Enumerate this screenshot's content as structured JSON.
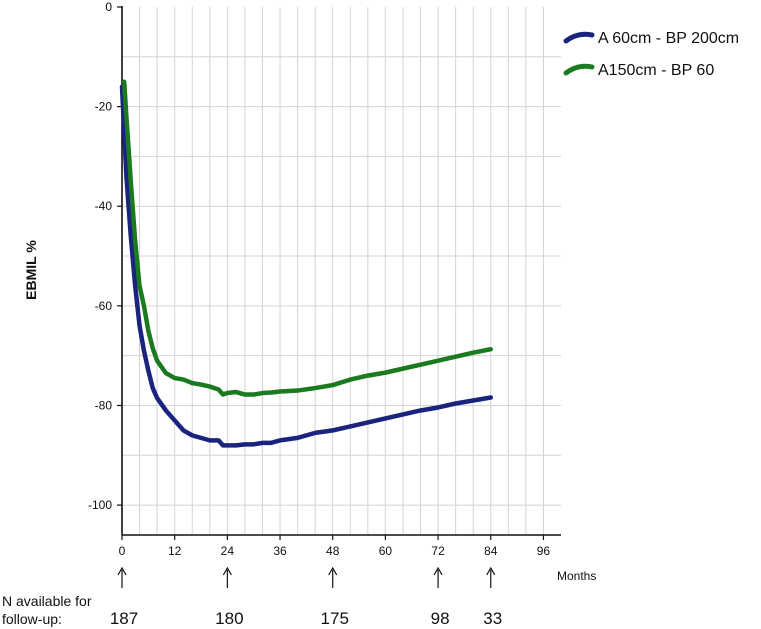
{
  "chart_data": {
    "type": "line",
    "title": "",
    "xlabel": "Months",
    "ylabel": "EBMIL %",
    "xlim": [
      0,
      100
    ],
    "ylim": [
      -106,
      0
    ],
    "x_ticks": [
      0,
      12,
      24,
      36,
      48,
      60,
      72,
      84,
      96
    ],
    "y_ticks": [
      0,
      -20,
      -40,
      -60,
      -80,
      -100
    ],
    "grid": true,
    "legend_position": "top-right",
    "series": [
      {
        "name": "A 60cm - BP 200cm",
        "color": "#1a237e",
        "points": [
          [
            0,
            -16
          ],
          [
            1,
            -34
          ],
          [
            2,
            -46
          ],
          [
            3,
            -56
          ],
          [
            4,
            -64
          ],
          [
            5,
            -69
          ],
          [
            6,
            -73
          ],
          [
            7,
            -76.5
          ],
          [
            8,
            -78.5
          ],
          [
            10,
            -81
          ],
          [
            12,
            -83
          ],
          [
            14,
            -85
          ],
          [
            16,
            -86
          ],
          [
            18,
            -86.5
          ],
          [
            20,
            -87
          ],
          [
            22,
            -87
          ],
          [
            23,
            -88
          ],
          [
            24,
            -88
          ],
          [
            26,
            -88
          ],
          [
            28,
            -87.8
          ],
          [
            30,
            -87.8
          ],
          [
            32,
            -87.5
          ],
          [
            34,
            -87.5
          ],
          [
            36,
            -87
          ],
          [
            40,
            -86.5
          ],
          [
            44,
            -85.5
          ],
          [
            48,
            -85
          ],
          [
            52,
            -84.2
          ],
          [
            56,
            -83.4
          ],
          [
            60,
            -82.6
          ],
          [
            64,
            -81.8
          ],
          [
            68,
            -81
          ],
          [
            72,
            -80.4
          ],
          [
            76,
            -79.6
          ],
          [
            80,
            -79
          ],
          [
            84,
            -78.4
          ]
        ]
      },
      {
        "name": "A150cm - BP 60",
        "color": "#1b7a1f",
        "points": [
          [
            0.5,
            -15
          ],
          [
            1,
            -22
          ],
          [
            2,
            -35
          ],
          [
            3,
            -47
          ],
          [
            4,
            -56
          ],
          [
            5,
            -60
          ],
          [
            6,
            -65
          ],
          [
            7,
            -68.5
          ],
          [
            8,
            -71
          ],
          [
            10,
            -73.5
          ],
          [
            12,
            -74.5
          ],
          [
            14,
            -74.8
          ],
          [
            16,
            -75.5
          ],
          [
            18,
            -75.8
          ],
          [
            20,
            -76.2
          ],
          [
            22,
            -76.8
          ],
          [
            23,
            -77.8
          ],
          [
            24,
            -77.5
          ],
          [
            26,
            -77.3
          ],
          [
            28,
            -77.8
          ],
          [
            30,
            -77.8
          ],
          [
            32,
            -77.5
          ],
          [
            34,
            -77.4
          ],
          [
            36,
            -77.2
          ],
          [
            40,
            -77
          ],
          [
            44,
            -76.5
          ],
          [
            48,
            -75.9
          ],
          [
            52,
            -74.8
          ],
          [
            56,
            -74
          ],
          [
            60,
            -73.4
          ],
          [
            64,
            -72.6
          ],
          [
            68,
            -71.8
          ],
          [
            72,
            -71
          ],
          [
            76,
            -70.2
          ],
          [
            80,
            -69.4
          ],
          [
            84,
            -68.7
          ]
        ]
      }
    ],
    "annotations": {
      "follow_up_label_line1": "N available for",
      "follow_up_label_line2": "follow-up:",
      "follow_up_counts": [
        {
          "month": 0,
          "n": "187"
        },
        {
          "month": 24,
          "n": "180"
        },
        {
          "month": 48,
          "n": "175"
        },
        {
          "month": 72,
          "n": "98"
        },
        {
          "month": 84,
          "n": "33"
        }
      ]
    }
  }
}
